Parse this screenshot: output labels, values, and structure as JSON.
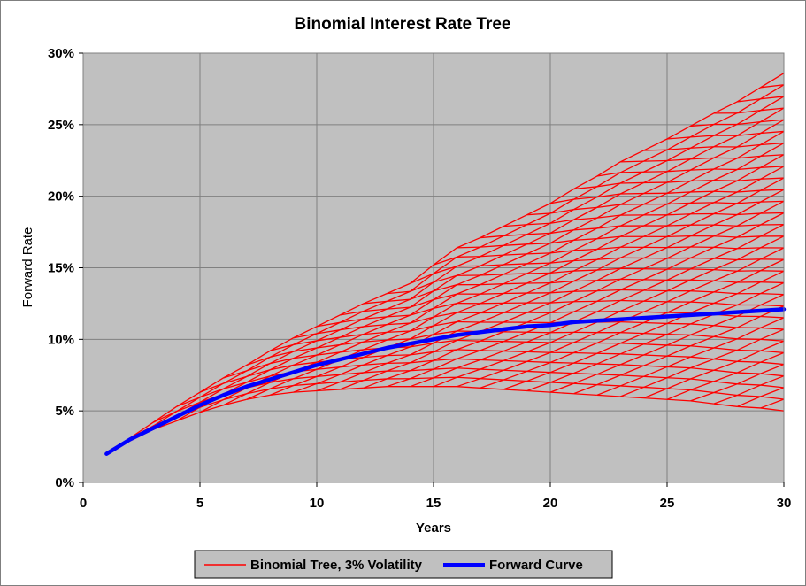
{
  "chart_data": {
    "type": "line",
    "title": "Binomial Interest Rate Tree",
    "xlabel": "Years",
    "ylabel": "Forward Rate",
    "xlim": [
      0,
      30
    ],
    "ylim": [
      0,
      0.3
    ],
    "x_ticks": [
      "0",
      "5",
      "10",
      "15",
      "20",
      "25",
      "30"
    ],
    "y_ticks": [
      "0%",
      "5%",
      "10%",
      "15%",
      "20%",
      "25%",
      "30%"
    ],
    "grid": true,
    "legend_position": "bottom",
    "volatility": 0.03,
    "series": [
      {
        "name": "Binomial Tree, 3% Volatility",
        "color": "#ff0000",
        "kind": "binomial-tree",
        "x": [
          1,
          2,
          3,
          4,
          5,
          6,
          7,
          8,
          9,
          10,
          11,
          12,
          13,
          14,
          15,
          16,
          17,
          18,
          19,
          20,
          21,
          22,
          23,
          24,
          25,
          26,
          27,
          28,
          29,
          30
        ],
        "upper": [
          0.02,
          0.031,
          0.042,
          0.053,
          0.063,
          0.073,
          0.082,
          0.092,
          0.101,
          0.109,
          0.117,
          0.125,
          0.132,
          0.139,
          0.152,
          0.164,
          0.171,
          0.179,
          0.187,
          0.195,
          0.205,
          0.214,
          0.224,
          0.232,
          0.24,
          0.249,
          0.258,
          0.266,
          0.276,
          0.286
        ],
        "lower": [
          0.02,
          0.029,
          0.037,
          0.043,
          0.049,
          0.054,
          0.058,
          0.061,
          0.063,
          0.064,
          0.065,
          0.066,
          0.067,
          0.067,
          0.067,
          0.067,
          0.066,
          0.065,
          0.064,
          0.063,
          0.062,
          0.061,
          0.06,
          0.059,
          0.058,
          0.057,
          0.055,
          0.053,
          0.052,
          0.05
        ]
      },
      {
        "name": "Forward Curve",
        "color": "#0000ff",
        "x": [
          1,
          2,
          3,
          4,
          5,
          6,
          7,
          8,
          9,
          10,
          11,
          12,
          13,
          14,
          15,
          16,
          17,
          18,
          19,
          20,
          21,
          22,
          23,
          24,
          25,
          26,
          27,
          28,
          29,
          30
        ],
        "values": [
          0.02,
          0.03,
          0.038,
          0.046,
          0.054,
          0.061,
          0.067,
          0.072,
          0.077,
          0.082,
          0.086,
          0.09,
          0.094,
          0.097,
          0.1,
          0.103,
          0.105,
          0.107,
          0.109,
          0.11,
          0.112,
          0.113,
          0.114,
          0.115,
          0.116,
          0.117,
          0.118,
          0.119,
          0.12,
          0.121
        ]
      }
    ]
  },
  "colors": {
    "plot_background": "#c0c0c0",
    "grid": "#808080",
    "tree": "#ff0000",
    "forward_curve": "#0000ff",
    "legend_background": "#c0c0c0"
  }
}
